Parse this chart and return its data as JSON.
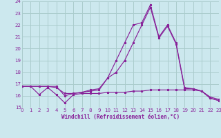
{
  "xlabel": "Windchill (Refroidissement éolien,°C)",
  "background_color": "#cce8ee",
  "grid_color": "#aacccc",
  "line_color": "#882299",
  "x": [
    0,
    1,
    2,
    3,
    4,
    5,
    6,
    7,
    8,
    9,
    10,
    11,
    12,
    13,
    14,
    15,
    16,
    17,
    18,
    19,
    20,
    21,
    22,
    23
  ],
  "line1": [
    16.8,
    16.8,
    16.1,
    16.7,
    16.1,
    15.4,
    16.1,
    16.2,
    16.2,
    16.2,
    16.3,
    16.3,
    16.3,
    16.4,
    16.4,
    16.5,
    16.5,
    16.5,
    16.5,
    16.5,
    16.5,
    16.4,
    15.8,
    15.6
  ],
  "line2": [
    16.8,
    16.8,
    16.8,
    16.8,
    16.7,
    16.2,
    16.2,
    16.3,
    16.4,
    16.5,
    17.5,
    19.0,
    20.5,
    22.0,
    22.2,
    23.7,
    21.0,
    22.0,
    20.5,
    16.7,
    16.6,
    16.4,
    15.9,
    15.7
  ],
  "line3": [
    16.8,
    16.8,
    16.8,
    16.8,
    16.8,
    16.0,
    16.2,
    16.3,
    16.5,
    16.6,
    17.5,
    18.0,
    19.0,
    20.5,
    22.0,
    23.5,
    20.9,
    21.9,
    20.4,
    16.6,
    16.6,
    16.4,
    15.8,
    15.6
  ],
  "ylim": [
    15,
    24
  ],
  "xlim": [
    0,
    23
  ],
  "yticks": [
    15,
    16,
    17,
    18,
    19,
    20,
    21,
    22,
    23,
    24
  ],
  "xticks": [
    0,
    1,
    2,
    3,
    4,
    5,
    6,
    7,
    8,
    9,
    10,
    11,
    12,
    13,
    14,
    15,
    16,
    17,
    18,
    19,
    20,
    21,
    22,
    23
  ]
}
